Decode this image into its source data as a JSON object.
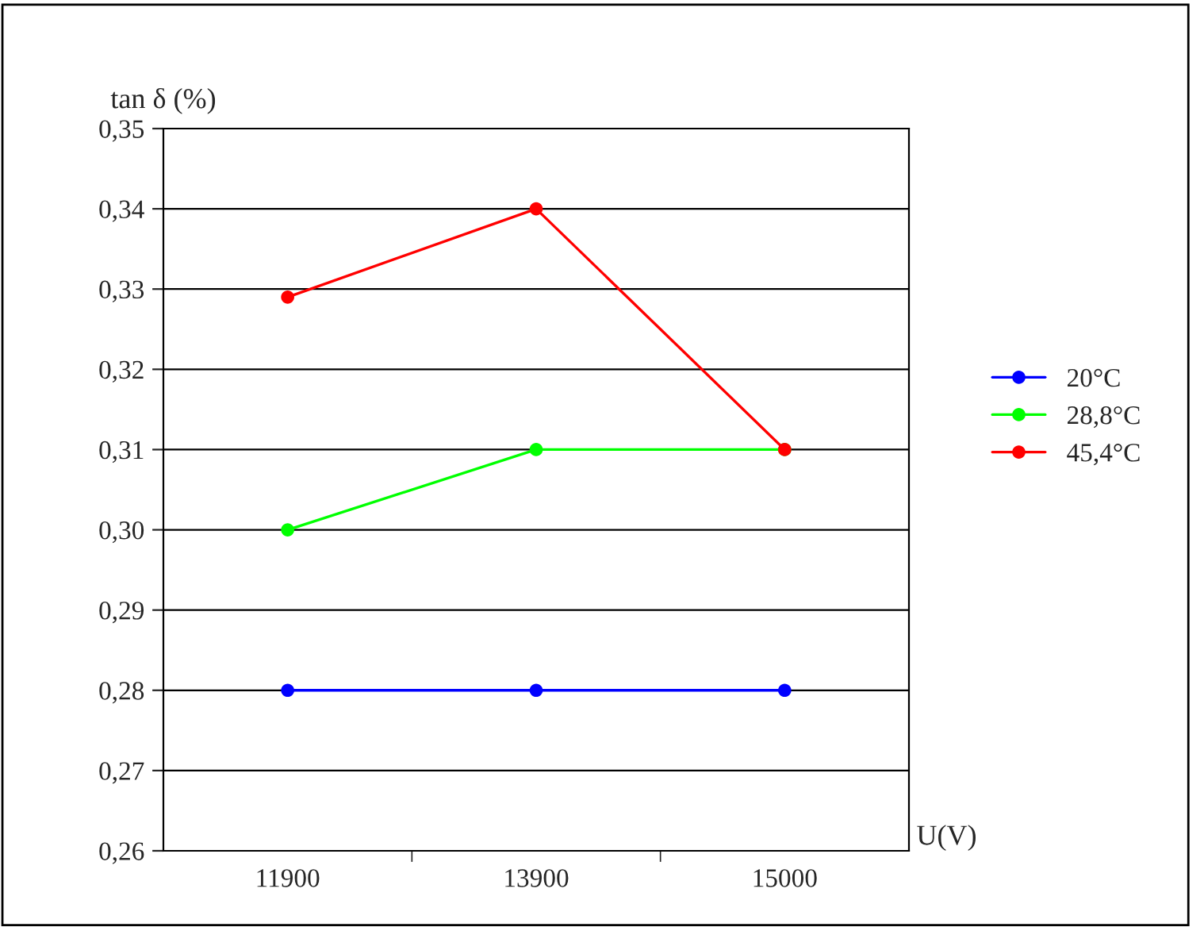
{
  "chart_data": {
    "type": "line",
    "xlabel": "U(V)",
    "ylabel": "tan δ (%)",
    "categories": [
      "11900",
      "13900",
      "15000"
    ],
    "series": [
      {
        "name": "20°C",
        "color": "#0000ff",
        "values": [
          0.28,
          0.28,
          0.28
        ]
      },
      {
        "name": "28,8°C",
        "color": "#00ff00",
        "values": [
          0.3,
          0.31,
          0.31
        ]
      },
      {
        "name": "45,4°C",
        "color": "#ff0000",
        "values": [
          0.329,
          0.34,
          0.31
        ]
      }
    ],
    "ylim": [
      0.26,
      0.35
    ],
    "yticks": [
      {
        "value": 0.26,
        "label": "0,26"
      },
      {
        "value": 0.27,
        "label": "0,27"
      },
      {
        "value": 0.28,
        "label": "0,28"
      },
      {
        "value": 0.29,
        "label": "0,29"
      },
      {
        "value": 0.3,
        "label": "0,30"
      },
      {
        "value": 0.31,
        "label": "0,31"
      },
      {
        "value": 0.32,
        "label": "0,32"
      },
      {
        "value": 0.33,
        "label": "0,33"
      },
      {
        "value": 0.34,
        "label": "0,34"
      },
      {
        "value": 0.35,
        "label": "0,35"
      }
    ],
    "grid": "y",
    "legend": "right",
    "marker": "circle",
    "line_style": "solid"
  }
}
